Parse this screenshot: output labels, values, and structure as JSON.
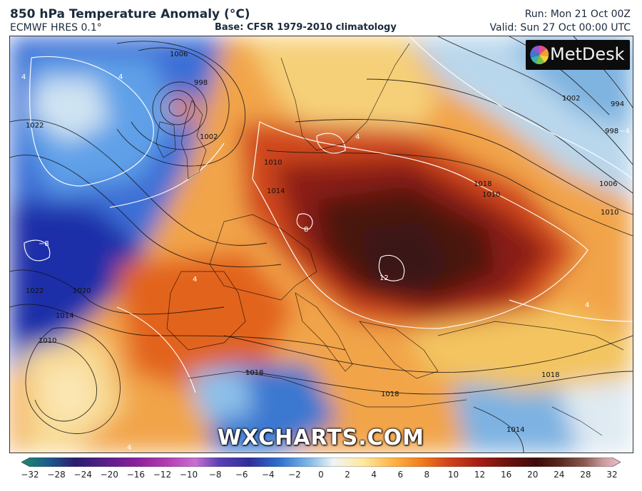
{
  "header": {
    "title": "850 hPa Temperature Anomaly (°C)",
    "model": "ECMWF HRES 0.1°",
    "base": "Base: CFSR 1979-2010 climatology",
    "run": "Run: Mon 21 Oct 00Z",
    "valid": "Valid: Sun 27 Oct 00:00 UTC"
  },
  "logo": {
    "text": "MetDesk"
  },
  "watermark": "WXCHARTS.COM",
  "colorbar": {
    "ticks": [
      "−32",
      "−28",
      "−24",
      "−20",
      "−16",
      "−12",
      "−10",
      "−8",
      "−6",
      "−4",
      "−2",
      "0",
      "2",
      "4",
      "6",
      "8",
      "10",
      "12",
      "16",
      "20",
      "24",
      "28",
      "32"
    ],
    "colors": [
      "#1e8a6e",
      "#1c5a8a",
      "#2a1e6e",
      "#5a1e8a",
      "#8a1e9a",
      "#b23ab0",
      "#c86fd0",
      "#5b3fb5",
      "#2e2f9a",
      "#2f6fd0",
      "#7fb8e8",
      "#eef4f6",
      "#ffe9a0",
      "#ffb347",
      "#f07a1a",
      "#d4451a",
      "#a81f14",
      "#6e1210",
      "#3e0c0a",
      "#5a2a20",
      "#8a5a50",
      "#c89a9a",
      "#f0c0d0"
    ]
  },
  "map": {
    "contour_labels": [
      "1006",
      "998",
      "1002",
      "1022",
      "1022",
      "1020",
      "1018",
      "1014",
      "1010",
      "1018",
      "1014",
      "1010",
      "1018",
      "1014",
      "1002",
      "994",
      "998",
      "1006",
      "1010",
      "1010",
      "1018"
    ],
    "anomaly_labels": [
      "4",
      "4",
      "4",
      "−4",
      "−8",
      "8",
      "12",
      "4",
      "4",
      "4"
    ]
  }
}
